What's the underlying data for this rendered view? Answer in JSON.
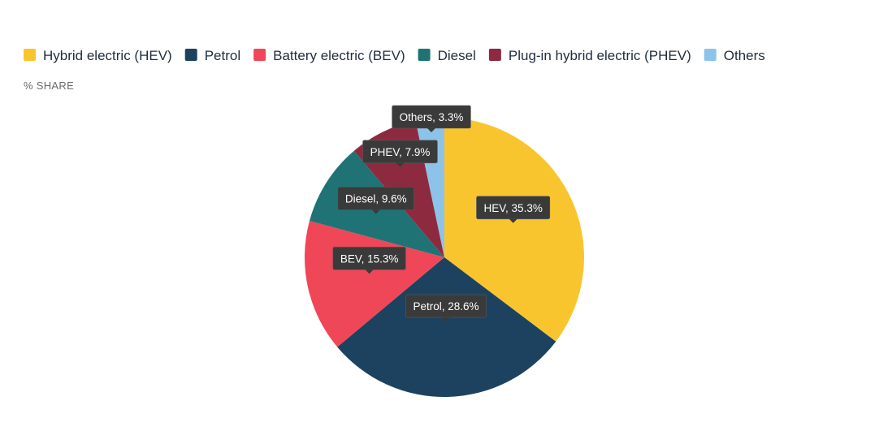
{
  "chart_data": {
    "type": "pie",
    "title": "",
    "subtitle": "% SHARE",
    "unit": "%",
    "legend_position": "top-left",
    "series": [
      {
        "name": "Hybrid electric (HEV)",
        "short": "HEV",
        "value": 35.3,
        "color": "#F9C52F"
      },
      {
        "name": "Petrol",
        "short": "Petrol",
        "value": 28.6,
        "color": "#1D4260"
      },
      {
        "name": "Battery electric (BEV)",
        "short": "BEV",
        "value": 15.3,
        "color": "#EF4758"
      },
      {
        "name": "Diesel",
        "short": "Diesel",
        "value": 9.6,
        "color": "#1F7375"
      },
      {
        "name": "Plug-in hybrid electric (PHEV)",
        "short": "PHEV",
        "value": 7.9,
        "color": "#8D2A40"
      },
      {
        "name": "Others",
        "short": "Others",
        "value": 3.3,
        "color": "#8DC3E9"
      }
    ]
  }
}
